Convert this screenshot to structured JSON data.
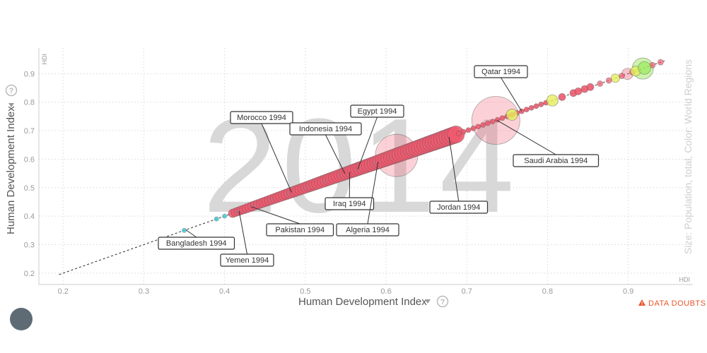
{
  "chart_data": {
    "type": "scatter",
    "year": "2014",
    "xlabel": "Human Development Index",
    "ylabel": "Human Development Index",
    "x_short": "HDI",
    "y_short": "HDI",
    "size_label": "Size: Population, total, Color: World Regions",
    "xlim": [
      0.17,
      0.98
    ],
    "ylim": [
      0.16,
      0.99
    ],
    "x_ticks": [
      "0.2",
      "0.3",
      "0.4",
      "0.5",
      "0.6",
      "0.7",
      "0.8",
      "0.9"
    ],
    "y_ticks": [
      "0.2",
      "0.3",
      "0.4",
      "0.5",
      "0.6",
      "0.7",
      "0.8",
      "0.9"
    ],
    "trail": {
      "from": [
        0.195,
        0.195
      ],
      "to": [
        0.945,
        0.945
      ]
    },
    "region_colors": {
      "middle_east_north_africa": "#ef5a6f",
      "south_asia": "#33d1e0",
      "europe_central_asia": "#e6ee5c",
      "america": "#9bea5c"
    },
    "annotations": [
      {
        "label": "Bangladesh 1994",
        "x": 0.352,
        "y": 0.352
      },
      {
        "label": "Yemen 1994",
        "x": 0.418,
        "y": 0.418
      },
      {
        "label": "Pakistan 1994",
        "x": 0.433,
        "y": 0.433
      },
      {
        "label": "Morocco 1994",
        "x": 0.483,
        "y": 0.483
      },
      {
        "label": "Indonesia 1994",
        "x": 0.549,
        "y": 0.549
      },
      {
        "label": "Egypt 1994",
        "x": 0.565,
        "y": 0.565
      },
      {
        "label": "Iraq 1994",
        "x": 0.555,
        "y": 0.555
      },
      {
        "label": "Algeria 1994",
        "x": 0.59,
        "y": 0.59
      },
      {
        "label": "Jordan 1994",
        "x": 0.678,
        "y": 0.678
      },
      {
        "label": "Saudi Arabia 1994",
        "x": 0.737,
        "y": 0.737
      },
      {
        "label": "Qatar 1994",
        "x": 0.768,
        "y": 0.768
      }
    ]
  },
  "footer": {
    "warning": "DATA DOUBTS"
  }
}
